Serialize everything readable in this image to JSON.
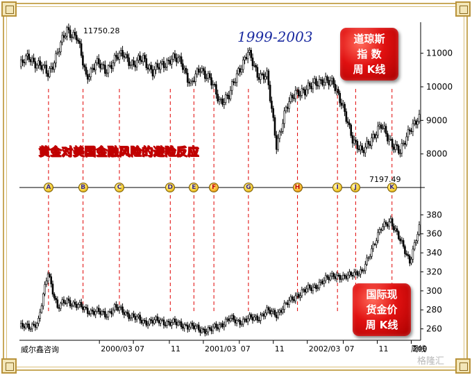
{
  "source_label": "威尔鑫咨询",
  "watermark": "格隆汇",
  "slogan": "黄金对美国金融风险的避险反应",
  "top_badge": {
    "lines": [
      "道琼斯",
      "指 数",
      "周 K线"
    ]
  },
  "bottom_badge": {
    "lines": [
      "国际现",
      "货金价",
      "周 K线"
    ]
  },
  "colors": {
    "background": "#ffffff",
    "candle": "#000000",
    "event_line": "#e00000",
    "badge": "#e01010",
    "period_text": "#1a2aa0",
    "slogan_text": "#ffe000"
  },
  "chart_data": [
    {
      "type": "line",
      "name": "道琼斯指数周K线",
      "period": "1999-2003",
      "ylim": [
        7000,
        11800
      ],
      "yticks": [
        8000,
        9000,
        10000,
        11000
      ],
      "annotations": [
        {
          "label": "11750.28",
          "x": 36,
          "value": 11750.28
        },
        {
          "label": "7197.49",
          "x": 204,
          "value": 7197.49
        }
      ],
      "x_weeks": [
        0,
        6,
        12,
        18,
        24,
        30,
        36,
        42,
        48,
        54,
        60,
        66,
        72,
        78,
        84,
        90,
        96,
        102,
        108,
        114,
        120,
        126,
        132,
        138,
        144,
        150,
        156,
        162,
        168,
        174,
        180,
        186,
        192,
        198,
        204,
        210,
        216,
        222,
        228,
        234,
        240,
        246,
        252
      ],
      "values": [
        10600,
        10900,
        10650,
        10400,
        11000,
        11700,
        11500,
        10300,
        10700,
        10500,
        10800,
        11000,
        10600,
        10900,
        10400,
        10700,
        10800,
        10800,
        10000,
        10600,
        10200,
        9600,
        9700,
        10500,
        11000,
        10400,
        10300,
        8300,
        9300,
        9900,
        9800,
        10200,
        10100,
        10200,
        9300,
        8500,
        8000,
        8500,
        8800,
        8400,
        8000,
        8800,
        9000
      ]
    },
    {
      "type": "line",
      "name": "国际现货金价周K线",
      "ylim": [
        248,
        400
      ],
      "yticks": [
        260,
        280,
        300,
        320,
        340,
        360,
        380
      ],
      "x_weeks": [
        0,
        6,
        12,
        18,
        24,
        30,
        36,
        42,
        48,
        54,
        60,
        66,
        72,
        78,
        84,
        90,
        96,
        102,
        108,
        114,
        120,
        126,
        132,
        138,
        144,
        150,
        156,
        162,
        168,
        174,
        180,
        186,
        192,
        198,
        204,
        210,
        216,
        222,
        228,
        234,
        240,
        246,
        252
      ],
      "values": [
        262,
        262,
        268,
        320,
        282,
        290,
        285,
        280,
        278,
        275,
        282,
        278,
        272,
        268,
        268,
        268,
        266,
        265,
        262,
        260,
        258,
        264,
        270,
        268,
        270,
        272,
        278,
        276,
        285,
        295,
        300,
        305,
        310,
        318,
        312,
        320,
        318,
        345,
        365,
        375,
        352,
        332,
        365
      ]
    }
  ],
  "events": [
    {
      "label": "A",
      "x": 16,
      "highlight": false
    },
    {
      "label": "B",
      "x": 35,
      "highlight": false
    },
    {
      "label": "C",
      "x": 55,
      "highlight": false
    },
    {
      "label": "D",
      "x": 83,
      "highlight": false
    },
    {
      "label": "E",
      "x": 96,
      "highlight": false
    },
    {
      "label": "F",
      "x": 107,
      "highlight": true
    },
    {
      "label": "G",
      "x": 126,
      "highlight": false
    },
    {
      "label": "H",
      "x": 153,
      "highlight": true
    },
    {
      "label": "I",
      "x": 175,
      "highlight": false
    },
    {
      "label": "J",
      "x": 185,
      "highlight": false
    },
    {
      "label": "K",
      "x": 205,
      "highlight": false
    }
  ],
  "x_axis": {
    "ticks": [
      {
        "label": "2000/03",
        "x": 40
      },
      {
        "label": "07",
        "x": 57
      },
      {
        "label": "11",
        "x": 75
      },
      {
        "label": "2001/03",
        "x": 92
      },
      {
        "label": "07",
        "x": 110
      },
      {
        "label": "11",
        "x": 127
      },
      {
        "label": "2002/03",
        "x": 144
      },
      {
        "label": "07",
        "x": 162
      },
      {
        "label": "11",
        "x": 179
      },
      {
        "label": "200",
        "x": 196
      }
    ],
    "end_label": "周线"
  }
}
